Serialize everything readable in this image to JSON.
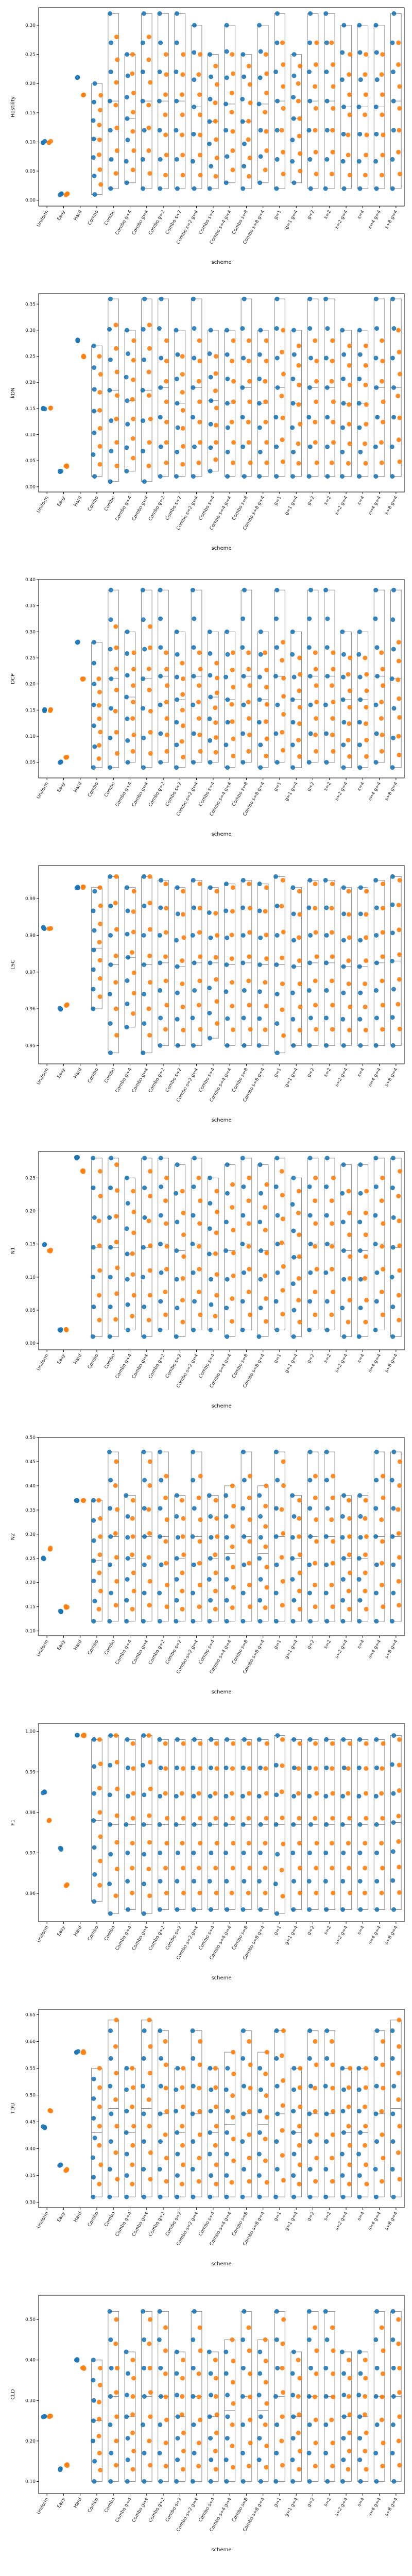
{
  "xlabel": "scheme",
  "categories": [
    "Uniform",
    "Easy",
    "Hard",
    "Combo",
    "Combo",
    "Combo g=4",
    "Combo g=4",
    "Combo g=2",
    "Combo s=2",
    "Combo s=2 g=4",
    "Combo s=4",
    "Combo s=4 g=4",
    "Combo s=8",
    "Combo s=8 g=4",
    "g=1",
    "g=1 g=4",
    "g=2",
    "s=2",
    "s=2 g=4",
    "s=4",
    "s=4 g=4",
    "s=8 g=4"
  ],
  "colors": {
    "series_a": "#1f77b4",
    "series_b": "#ff7f0e",
    "box": "#888888"
  },
  "chart_data": [
    {
      "type": "scatter",
      "ylabel": "Hostility",
      "ylim": [
        -0.01,
        0.33
      ],
      "yticks": [
        0.0,
        0.05,
        0.1,
        0.15,
        0.2,
        0.25,
        0.3
      ],
      "group_a": [
        0.1,
        0.01,
        0.21,
        0.2,
        0.32,
        0.25,
        0.32,
        0.32,
        0.32,
        0.3,
        0.25,
        0.3,
        0.25,
        0.3,
        0.32,
        0.25,
        0.32,
        0.32,
        0.3,
        0.3,
        0.3,
        0.32
      ],
      "group_b": [
        0.1,
        0.01,
        0.18,
        0.18,
        0.28,
        0.25,
        0.28,
        0.25,
        0.25,
        0.25,
        0.23,
        0.25,
        0.23,
        0.25,
        0.27,
        0.23,
        0.27,
        0.27,
        0.25,
        0.25,
        0.25,
        0.27
      ],
      "low": [
        0.1,
        0.01,
        0.19,
        0.01,
        0.02,
        0.03,
        0.02,
        0.02,
        0.02,
        0.02,
        0.02,
        0.03,
        0.02,
        0.03,
        0.02,
        0.03,
        0.02,
        0.02,
        0.02,
        0.02,
        0.02,
        0.02
      ]
    },
    {
      "type": "scatter",
      "ylabel": "kDN",
      "ylim": [
        -0.01,
        0.37
      ],
      "yticks": [
        0.0,
        0.05,
        0.1,
        0.15,
        0.2,
        0.25,
        0.3,
        0.35
      ],
      "group_a": [
        0.15,
        0.03,
        0.28,
        0.27,
        0.36,
        0.3,
        0.36,
        0.36,
        0.3,
        0.36,
        0.3,
        0.3,
        0.36,
        0.3,
        0.36,
        0.3,
        0.36,
        0.36,
        0.3,
        0.3,
        0.36,
        0.36
      ],
      "group_b": [
        0.15,
        0.04,
        0.25,
        0.25,
        0.31,
        0.28,
        0.31,
        0.28,
        0.25,
        0.28,
        0.25,
        0.28,
        0.28,
        0.28,
        0.3,
        0.27,
        0.28,
        0.28,
        0.27,
        0.27,
        0.28,
        0.3
      ],
      "low": [
        0.15,
        0.03,
        0.26,
        0.02,
        0.01,
        0.03,
        0.01,
        0.02,
        0.02,
        0.02,
        0.03,
        0.02,
        0.02,
        0.02,
        0.02,
        0.02,
        0.02,
        0.02,
        0.02,
        0.02,
        0.02,
        0.02
      ]
    },
    {
      "type": "scatter",
      "ylabel": "DCP",
      "ylim": [
        0.02,
        0.4
      ],
      "yticks": [
        0.05,
        0.1,
        0.15,
        0.2,
        0.25,
        0.3,
        0.35,
        0.4
      ],
      "group_a": [
        0.15,
        0.05,
        0.28,
        0.28,
        0.38,
        0.3,
        0.38,
        0.38,
        0.3,
        0.38,
        0.3,
        0.3,
        0.38,
        0.3,
        0.38,
        0.3,
        0.38,
        0.38,
        0.3,
        0.3,
        0.38,
        0.38
      ],
      "group_b": [
        0.15,
        0.06,
        0.21,
        0.21,
        0.31,
        0.26,
        0.31,
        0.26,
        0.24,
        0.26,
        0.24,
        0.26,
        0.26,
        0.26,
        0.28,
        0.25,
        0.26,
        0.26,
        0.25,
        0.25,
        0.26,
        0.28
      ],
      "low": [
        0.15,
        0.05,
        0.21,
        0.04,
        0.04,
        0.05,
        0.04,
        0.05,
        0.04,
        0.05,
        0.05,
        0.04,
        0.05,
        0.04,
        0.05,
        0.04,
        0.05,
        0.05,
        0.04,
        0.04,
        0.05,
        0.04
      ]
    },
    {
      "type": "scatter",
      "ylabel": "LSC",
      "ylim": [
        0.945,
        0.999
      ],
      "yticks": [
        0.95,
        0.96,
        0.97,
        0.98,
        0.99
      ],
      "group_a": [
        0.982,
        0.96,
        0.993,
        0.992,
        0.996,
        0.993,
        0.996,
        0.995,
        0.993,
        0.995,
        0.993,
        0.994,
        0.995,
        0.994,
        0.996,
        0.993,
        0.995,
        0.995,
        0.993,
        0.993,
        0.995,
        0.996
      ],
      "group_b": [
        0.982,
        0.961,
        0.993,
        0.993,
        0.996,
        0.992,
        0.996,
        0.994,
        0.992,
        0.994,
        0.992,
        0.993,
        0.994,
        0.993,
        0.995,
        0.992,
        0.994,
        0.994,
        0.992,
        0.992,
        0.994,
        0.995
      ],
      "low": [
        0.975,
        0.96,
        0.992,
        0.96,
        0.948,
        0.955,
        0.948,
        0.95,
        0.95,
        0.95,
        0.952,
        0.95,
        0.95,
        0.95,
        0.948,
        0.95,
        0.95,
        0.95,
        0.95,
        0.95,
        0.95,
        0.95
      ]
    },
    {
      "type": "scatter",
      "ylabel": "N1",
      "ylim": [
        -0.01,
        0.29
      ],
      "yticks": [
        0.0,
        0.05,
        0.1,
        0.15,
        0.2,
        0.25
      ],
      "group_a": [
        0.15,
        0.02,
        0.28,
        0.28,
        0.28,
        0.25,
        0.28,
        0.28,
        0.27,
        0.28,
        0.25,
        0.27,
        0.28,
        0.27,
        0.28,
        0.25,
        0.28,
        0.28,
        0.27,
        0.27,
        0.28,
        0.28
      ],
      "group_b": [
        0.14,
        0.02,
        0.26,
        0.26,
        0.27,
        0.23,
        0.26,
        0.25,
        0.23,
        0.25,
        0.23,
        0.24,
        0.25,
        0.24,
        0.26,
        0.23,
        0.25,
        0.25,
        0.23,
        0.23,
        0.25,
        0.26
      ],
      "low": [
        0.14,
        0.02,
        0.26,
        0.01,
        0.01,
        0.02,
        0.01,
        0.02,
        0.01,
        0.02,
        0.02,
        0.01,
        0.02,
        0.01,
        0.02,
        0.01,
        0.02,
        0.02,
        0.01,
        0.01,
        0.02,
        0.01
      ]
    },
    {
      "type": "scatter",
      "ylabel": "N2",
      "ylim": [
        0.09,
        0.5
      ],
      "yticks": [
        0.1,
        0.15,
        0.2,
        0.25,
        0.3,
        0.35,
        0.4,
        0.45,
        0.5
      ],
      "group_a": [
        0.25,
        0.14,
        0.37,
        0.37,
        0.47,
        0.38,
        0.47,
        0.47,
        0.38,
        0.47,
        0.38,
        0.38,
        0.47,
        0.38,
        0.47,
        0.38,
        0.47,
        0.47,
        0.38,
        0.38,
        0.47,
        0.47
      ],
      "group_b": [
        0.27,
        0.15,
        0.37,
        0.37,
        0.45,
        0.37,
        0.45,
        0.42,
        0.37,
        0.42,
        0.37,
        0.4,
        0.42,
        0.4,
        0.45,
        0.37,
        0.42,
        0.42,
        0.37,
        0.37,
        0.42,
        0.45
      ],
      "low": [
        0.25,
        0.14,
        0.37,
        0.12,
        0.12,
        0.12,
        0.12,
        0.12,
        0.12,
        0.12,
        0.12,
        0.12,
        0.12,
        0.12,
        0.12,
        0.12,
        0.12,
        0.12,
        0.12,
        0.12,
        0.12,
        0.12
      ]
    },
    {
      "type": "scatter",
      "ylabel": "F1",
      "ylim": [
        0.953,
        1.002
      ],
      "yticks": [
        0.96,
        0.97,
        0.98,
        0.99,
        1.0
      ],
      "group_a": [
        0.985,
        0.971,
        0.999,
        0.998,
        0.999,
        0.998,
        0.999,
        0.998,
        0.998,
        0.998,
        0.998,
        0.998,
        0.998,
        0.998,
        0.999,
        0.998,
        0.998,
        0.998,
        0.998,
        0.998,
        0.998,
        0.999
      ],
      "group_b": [
        0.978,
        0.962,
        0.999,
        0.998,
        0.999,
        0.997,
        0.999,
        0.997,
        0.997,
        0.997,
        0.997,
        0.997,
        0.997,
        0.997,
        0.998,
        0.997,
        0.997,
        0.997,
        0.997,
        0.997,
        0.997,
        0.998
      ],
      "low": [
        0.978,
        0.96,
        0.955,
        0.958,
        0.955,
        0.956,
        0.955,
        0.956,
        0.956,
        0.956,
        0.956,
        0.956,
        0.956,
        0.956,
        0.955,
        0.956,
        0.956,
        0.956,
        0.956,
        0.956,
        0.956,
        0.956
      ]
    },
    {
      "type": "scatter",
      "ylabel": "TDU",
      "ylim": [
        0.29,
        0.66
      ],
      "yticks": [
        0.3,
        0.35,
        0.4,
        0.45,
        0.5,
        0.55,
        0.6,
        0.65
      ],
      "group_a": [
        0.44,
        0.37,
        0.58,
        0.53,
        0.62,
        0.55,
        0.62,
        0.62,
        0.55,
        0.62,
        0.55,
        0.55,
        0.62,
        0.55,
        0.62,
        0.55,
        0.62,
        0.62,
        0.55,
        0.55,
        0.62,
        0.62
      ],
      "group_b": [
        0.47,
        0.36,
        0.58,
        0.55,
        0.64,
        0.55,
        0.64,
        0.6,
        0.55,
        0.6,
        0.55,
        0.58,
        0.6,
        0.58,
        0.62,
        0.55,
        0.6,
        0.6,
        0.55,
        0.55,
        0.6,
        0.64
      ],
      "low": [
        0.44,
        0.36,
        0.53,
        0.31,
        0.31,
        0.31,
        0.31,
        0.31,
        0.31,
        0.31,
        0.31,
        0.31,
        0.31,
        0.31,
        0.31,
        0.31,
        0.31,
        0.31,
        0.31,
        0.31,
        0.31,
        0.31
      ]
    },
    {
      "type": "scatter",
      "ylabel": "CLD",
      "ylim": [
        0.07,
        0.56
      ],
      "yticks": [
        0.1,
        0.2,
        0.3,
        0.4,
        0.5
      ],
      "group_a": [
        0.26,
        0.13,
        0.4,
        0.4,
        0.52,
        0.42,
        0.52,
        0.52,
        0.42,
        0.52,
        0.42,
        0.42,
        0.52,
        0.42,
        0.52,
        0.42,
        0.52,
        0.52,
        0.42,
        0.42,
        0.52,
        0.52
      ],
      "group_b": [
        0.26,
        0.14,
        0.38,
        0.38,
        0.5,
        0.4,
        0.5,
        0.48,
        0.4,
        0.48,
        0.4,
        0.45,
        0.48,
        0.45,
        0.5,
        0.4,
        0.48,
        0.48,
        0.4,
        0.4,
        0.48,
        0.5
      ],
      "low": [
        0.26,
        0.13,
        0.38,
        0.1,
        0.1,
        0.1,
        0.1,
        0.1,
        0.1,
        0.1,
        0.1,
        0.1,
        0.1,
        0.1,
        0.1,
        0.1,
        0.1,
        0.1,
        0.1,
        0.1,
        0.1,
        0.1
      ]
    }
  ]
}
